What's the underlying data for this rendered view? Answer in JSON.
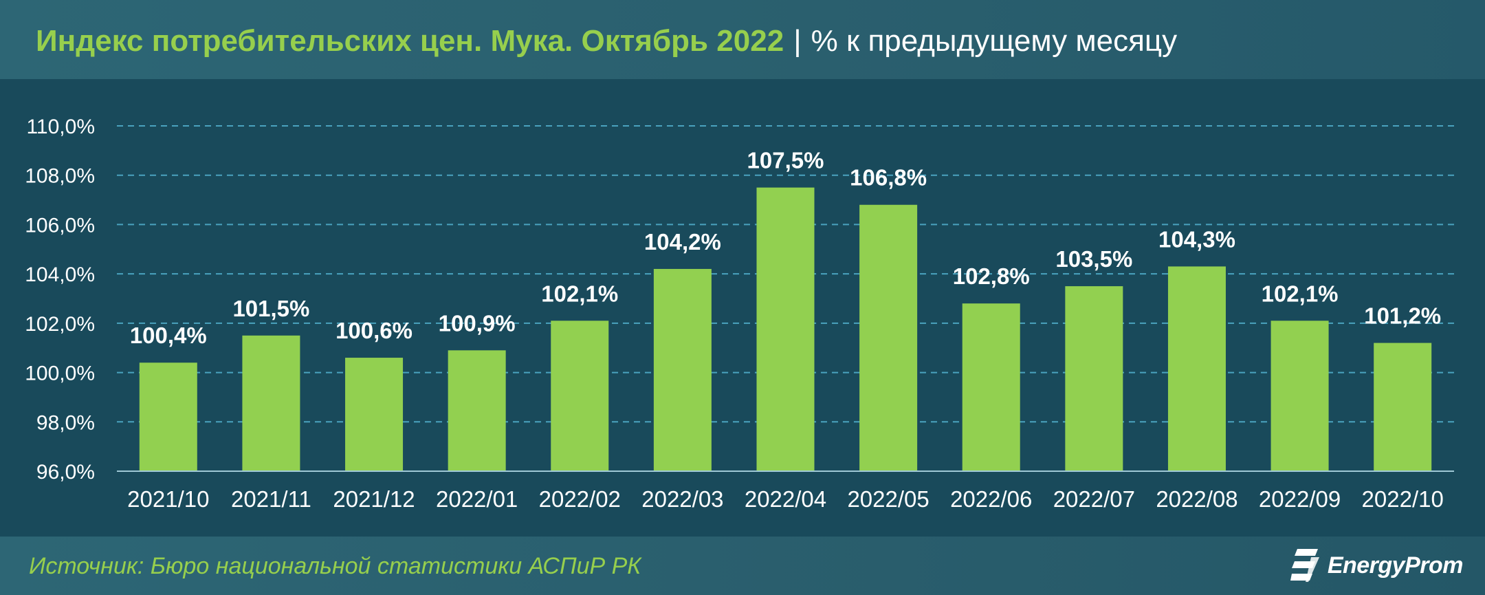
{
  "header": {
    "title": "Индекс потребительских цен. Мука. Октябрь 2022",
    "separator": "|",
    "subtitle": "% к предыдущему месяцу"
  },
  "footer": {
    "source": "Источник: Бюро национальной статистики АСПиР РК",
    "logo_text": "EnergyProm",
    "logo_icon": "energyprom-logo-icon"
  },
  "colors": {
    "background": "#194a5b",
    "bar": "#92d050",
    "title_accent": "#97cf4d",
    "label": "#ffffff",
    "grid": "#4aa3bf"
  },
  "chart_data": {
    "type": "bar",
    "title": "Индекс потребительских цен. Мука. Октябрь 2022",
    "subtitle": "% к предыдущему месяцу",
    "xlabel": "",
    "ylabel": "",
    "categories": [
      "2021/10",
      "2021/11",
      "2021/12",
      "2022/01",
      "2022/02",
      "2022/03",
      "2022/04",
      "2022/05",
      "2022/06",
      "2022/07",
      "2022/08",
      "2022/09",
      "2022/10"
    ],
    "values": [
      100.4,
      101.5,
      100.6,
      100.9,
      102.1,
      104.2,
      107.5,
      106.8,
      102.8,
      103.5,
      104.3,
      102.1,
      101.2
    ],
    "value_labels": [
      "100,4%",
      "101,5%",
      "100,6%",
      "100,9%",
      "102,1%",
      "104,2%",
      "107,5%",
      "106,8%",
      "102,8%",
      "103,5%",
      "104,3%",
      "102,1%",
      "101,2%"
    ],
    "ylim": [
      96,
      110
    ],
    "yticks": [
      96,
      98,
      100,
      102,
      104,
      106,
      108,
      110
    ],
    "ytick_labels": [
      "96,0%",
      "98,0%",
      "100,0%",
      "102,0%",
      "104,0%",
      "106,0%",
      "108,0%",
      "110,0%"
    ],
    "grid": true,
    "legend": "none"
  }
}
